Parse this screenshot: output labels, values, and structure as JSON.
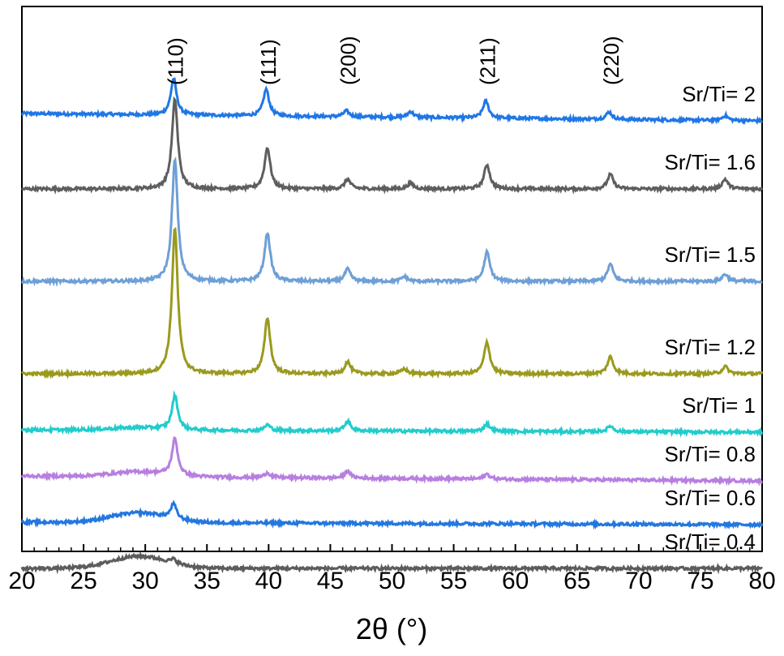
{
  "chart_data": {
    "type": "line",
    "title": "",
    "xlabel": "2θ (°)",
    "ylabel": "",
    "xlim": [
      20,
      80
    ],
    "x_ticks": [
      20,
      25,
      30,
      35,
      40,
      45,
      50,
      55,
      60,
      65,
      70,
      75,
      80
    ],
    "y_ticks_shown": false,
    "legend": "inline labels at right of each trace",
    "grid": false,
    "annotations": [
      {
        "text": "(110)",
        "x": 32.4
      },
      {
        "text": "(111)",
        "x": 39.9
      },
      {
        "text": "(200)",
        "x": 46.4
      },
      {
        "text": "(211)",
        "x": 57.7
      },
      {
        "text": "(220)",
        "x": 67.7
      }
    ],
    "series": [
      {
        "name": "Sr/Ti= 2",
        "color": "#1f77e6",
        "offset": 8.6,
        "peaks": [
          [
            32.3,
            0.75
          ],
          [
            39.8,
            0.55
          ],
          [
            46.3,
            0.12
          ],
          [
            51.5,
            0.12
          ],
          [
            57.6,
            0.35
          ],
          [
            67.6,
            0.15
          ],
          [
            77.0,
            0.1
          ]
        ],
        "hump": 0.0,
        "slope": 0.15
      },
      {
        "name": "Sr/Ti= 1.6",
        "color": "#5e5e5e",
        "offset": 7.2,
        "peaks": [
          [
            32.4,
            1.85
          ],
          [
            39.9,
            0.85
          ],
          [
            46.4,
            0.2
          ],
          [
            51.5,
            0.12
          ],
          [
            57.7,
            0.5
          ],
          [
            67.7,
            0.3
          ],
          [
            77.0,
            0.2
          ]
        ],
        "hump": 0.0,
        "slope": 0.0
      },
      {
        "name": "Sr/Ti= 1.5",
        "color": "#6e9fd6",
        "offset": 5.3,
        "peaks": [
          [
            32.4,
            2.5
          ],
          [
            39.9,
            1.0
          ],
          [
            46.4,
            0.25
          ],
          [
            51.0,
            0.1
          ],
          [
            57.7,
            0.6
          ],
          [
            67.7,
            0.35
          ],
          [
            77.0,
            0.15
          ]
        ],
        "hump": 0.0,
        "slope": 0.0
      },
      {
        "name": "Sr/Ti= 1.2",
        "color": "#9a9a1e",
        "offset": 3.4,
        "peaks": [
          [
            32.4,
            3.0
          ],
          [
            39.9,
            1.15
          ],
          [
            46.4,
            0.25
          ],
          [
            51.0,
            0.1
          ],
          [
            57.7,
            0.65
          ],
          [
            67.7,
            0.35
          ],
          [
            77.0,
            0.15
          ]
        ],
        "hump": 0.0,
        "slope": 0.0
      },
      {
        "name": "Sr/Ti= 1",
        "color": "#22cccc",
        "offset": 2.2,
        "peaks": [
          [
            32.4,
            0.7
          ],
          [
            39.9,
            0.12
          ],
          [
            46.4,
            0.2
          ],
          [
            57.7,
            0.15
          ],
          [
            67.7,
            0.12
          ]
        ],
        "hump": 0.05,
        "slope": 0.05
      },
      {
        "name": "Sr/Ti= 0.8",
        "color": "#b77fe0",
        "offset": 1.2,
        "peaks": [
          [
            32.4,
            0.75
          ],
          [
            39.9,
            0.1
          ],
          [
            46.4,
            0.15
          ],
          [
            57.7,
            0.1
          ]
        ],
        "hump": 0.1,
        "slope": 0.1
      },
      {
        "name": "Sr/Ti= 0.6",
        "color": "#2377e0",
        "offset": 0.3,
        "peaks": [
          [
            32.3,
            0.3
          ]
        ],
        "hump": 0.2,
        "slope": 0.05
      },
      {
        "name": "Sr/Ti= 0.4",
        "color": "#5c5c5c",
        "offset": -0.6,
        "peaks": [
          [
            32.3,
            0.08
          ]
        ],
        "hump": 0.25,
        "slope": 0.0
      }
    ]
  }
}
